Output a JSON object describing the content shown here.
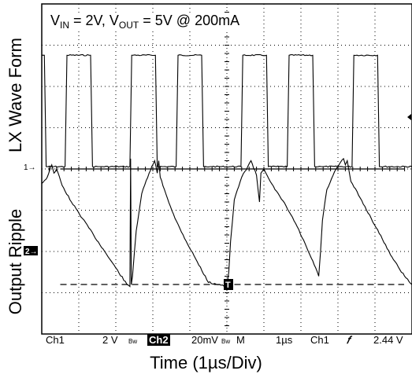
{
  "chart_data": {
    "type": "line",
    "title": {
      "vin_label": "V",
      "vin_sub": "IN",
      "vin_value": " = 2V, ",
      "vout_label": "V",
      "vout_sub": "OUT",
      "vout_value": " = 5V @ 200mA"
    },
    "xlabel": "Time (1µs/Div)",
    "upper_panel_label": "LX Wave Form",
    "lower_panel_label": "Output Ripple",
    "divisions": {
      "x": 10,
      "y": 8
    },
    "x_unit": "µs",
    "channel_markers": {
      "ch1": "1→",
      "ch2": "2→",
      "trigger": "T"
    },
    "series": [
      {
        "name": "Ch1",
        "scale": "2 V",
        "x": [
          0,
          0.07,
          0.12,
          0.63,
          0.68,
          1.32,
          1.37,
          1.55,
          1.6,
          2.38,
          2.43,
          3.07,
          3.12,
          3.63,
          3.68,
          4.32,
          4.37,
          4.55,
          4.6,
          5.38,
          5.43,
          6.07,
          6.12,
          6.63,
          6.68,
          7.32,
          7.37,
          7.55,
          7.6,
          8.38,
          8.43,
          9.07,
          9.12,
          10
        ],
        "values": [
          5.4,
          5.4,
          0,
          0,
          5.4,
          5.4,
          0,
          0,
          0,
          0,
          5.4,
          5.4,
          0,
          0,
          5.4,
          5.4,
          0,
          0,
          0,
          0,
          5.4,
          5.4,
          0,
          0,
          5.4,
          5.4,
          0,
          0,
          0,
          0,
          5.4,
          5.4,
          0,
          0
        ]
      },
      {
        "name": "Ch2",
        "scale": "20mV",
        "x": [
          0,
          0.15,
          0.27,
          0.33,
          0.4,
          0.55,
          0.8,
          1.1,
          1.4,
          1.7,
          2.0,
          2.3,
          2.38,
          2.4,
          2.42,
          2.45,
          2.55,
          2.7,
          2.9,
          3.05,
          3.12,
          3.16,
          3.2,
          3.35,
          3.6,
          3.9,
          4.2,
          4.5,
          4.8,
          5.0,
          5.05,
          5.1,
          5.2,
          5.4,
          5.65,
          5.8,
          5.88,
          5.92,
          6.0,
          6.3,
          6.6,
          6.9,
          7.2,
          7.4,
          7.48,
          7.53,
          7.58,
          7.7,
          7.95,
          8.15,
          8.2,
          8.25,
          8.35,
          8.6,
          8.9,
          9.2,
          9.5,
          9.8,
          10
        ],
        "values": [
          33,
          36,
          42,
          38,
          40,
          32,
          24,
          16,
          8,
          0,
          -8,
          -16,
          -17,
          45,
          -16,
          -12,
          10,
          28,
          38,
          44,
          38,
          44,
          36,
          28,
          16,
          5,
          -5,
          -15,
          -16,
          -17,
          -10,
          5,
          25,
          36,
          44,
          37,
          24,
          38,
          40,
          30,
          22,
          12,
          0,
          -8,
          -12,
          0,
          15,
          30,
          40,
          45,
          42,
          44,
          34,
          26,
          16,
          6,
          -4,
          -12,
          -16
        ]
      }
    ],
    "annotations": {
      "top_ref_line_mV": 40,
      "bottom_ref_line_mV": -16
    },
    "status_bar": {
      "ch1": "Ch1",
      "ch1_scale": "2 V",
      "bw1": "Bw",
      "ch2": "Ch2",
      "ch2_scale": "20mV",
      "bw2": "Bw",
      "m": "M",
      "time_div": "1µs",
      "trig_src": "Ch1",
      "trig_slope": "𝑓",
      "trig_level": "2.44 V"
    },
    "colors": {
      "trace": "#000000",
      "grid": "#000000",
      "background": "#ffffff"
    }
  }
}
